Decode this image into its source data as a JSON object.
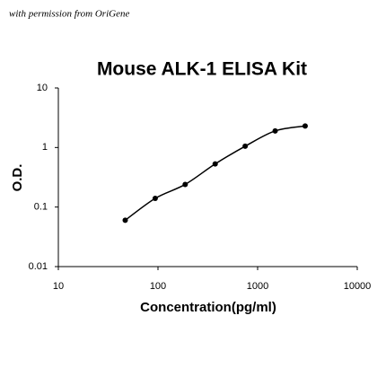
{
  "credit": "with permission from OriGene",
  "chart_data": {
    "type": "scatter",
    "title": "Mouse ALK-1 ELISA Kit",
    "x_label": "Concentration(pg/ml)",
    "y_label": "O.D.",
    "x": [
      46.9,
      93.8,
      187.5,
      375,
      750,
      1500,
      3000
    ],
    "series": [
      {
        "values": [
          0.06,
          0.14,
          0.24,
          0.53,
          1.05,
          1.9,
          2.3
        ],
        "color": "#000000"
      }
    ],
    "xlim": [
      10,
      10000
    ],
    "xticks": [
      10,
      100,
      1000,
      10000
    ],
    "ylim": [
      0.01,
      10
    ],
    "yticks": [
      0.01,
      0.1,
      1,
      10
    ],
    "x_log": true,
    "y_log": true,
    "grid": false,
    "trend_line": true
  }
}
